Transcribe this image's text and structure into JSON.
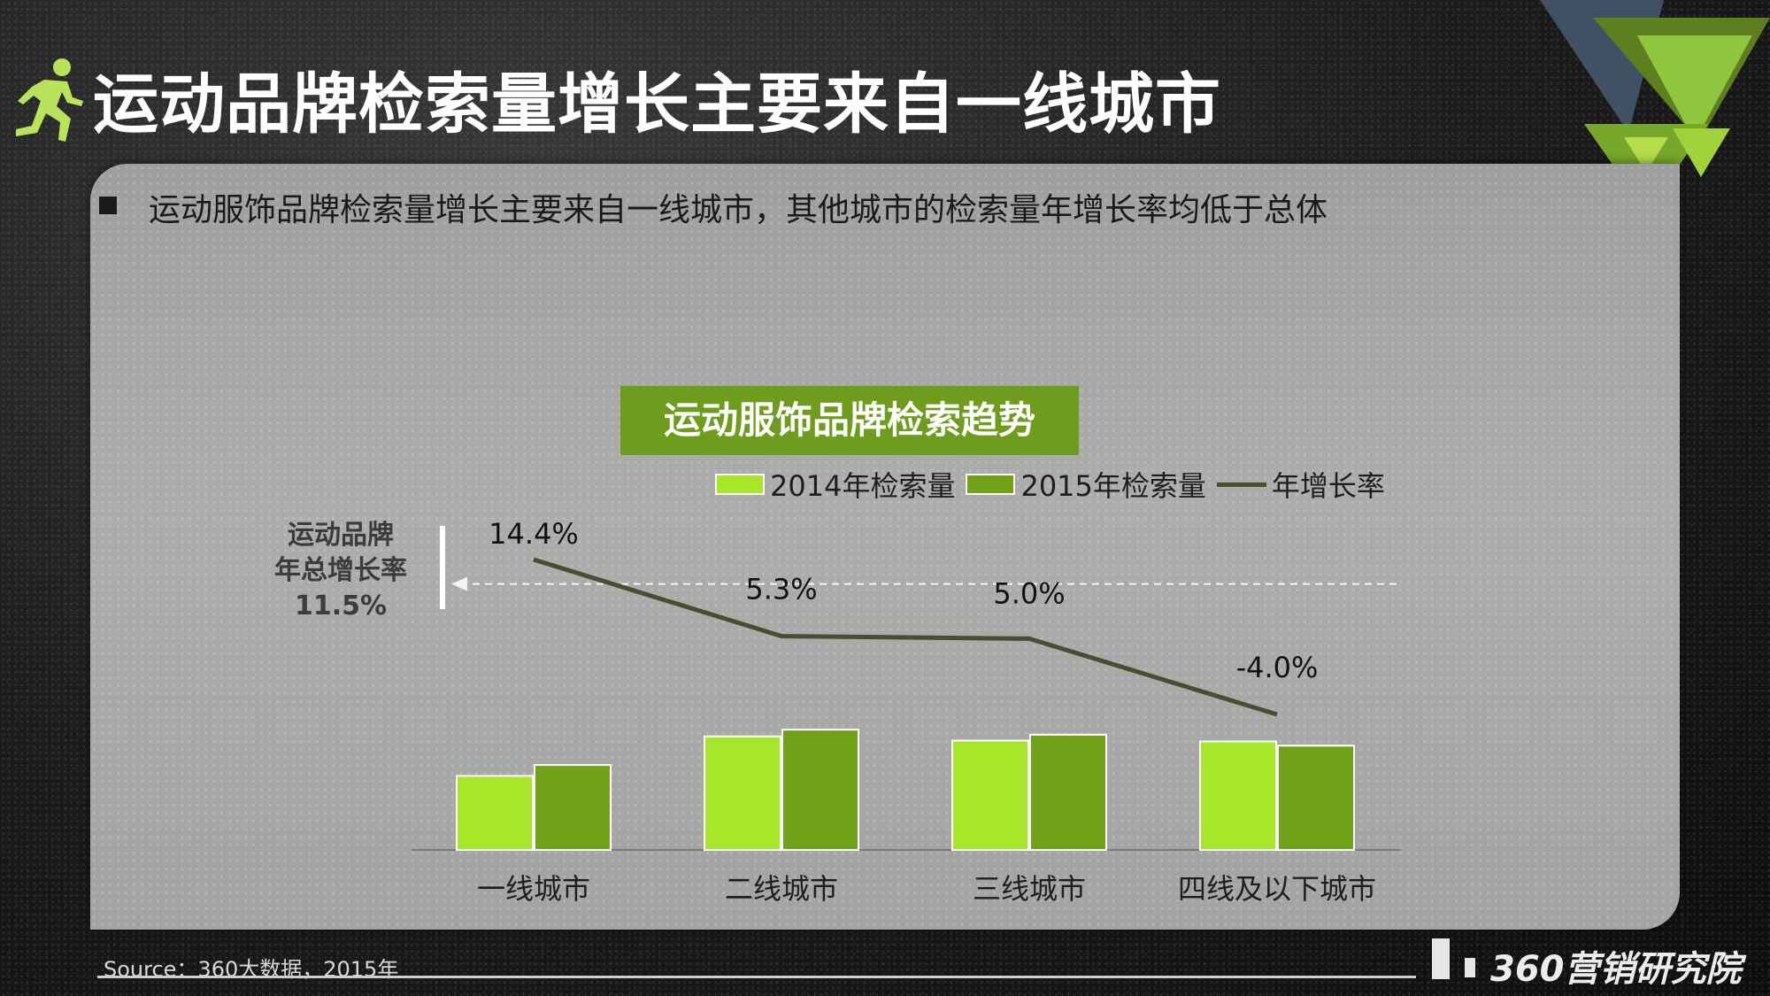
{
  "page": {
    "title": "运动品牌检索量增长主要来自一线城市",
    "subtitle": "运动服饰品牌检索量增长主要来自一线城市，其他城市的检索量年增长率均低于总体",
    "source": "Source：360大数据，2015年",
    "brand": "360营销研究院"
  },
  "total": {
    "label_line1": "运动品牌",
    "label_line2": "年总增长率",
    "value": "11.5%"
  },
  "colors": {
    "light_green": "#a8e62a",
    "dark_green": "#6fa216",
    "line": "#474f30",
    "title_box": "#6e9c1d"
  },
  "chart_data": {
    "type": "bar",
    "title": "运动服饰品牌检索趋势",
    "categories": [
      "一线城市",
      "二线城市",
      "三线城市",
      "四线及以下城市"
    ],
    "series": [
      {
        "name": "2014年检索量",
        "kind": "bar",
        "values": [
          88,
          135,
          130,
          129
        ]
      },
      {
        "name": "2015年检索量",
        "kind": "bar",
        "values": [
          101,
          143,
          137,
          124
        ]
      },
      {
        "name": "年增长率",
        "kind": "line",
        "values": [
          14.4,
          5.3,
          5.0,
          -4.0
        ],
        "labels": [
          "14.4%",
          "5.3%",
          "5.0%",
          "-4.0%"
        ]
      }
    ],
    "reference_line": {
      "value": 11.5,
      "style": "dashed",
      "label": "11.5%"
    },
    "legend_position": "top",
    "grid": false
  }
}
